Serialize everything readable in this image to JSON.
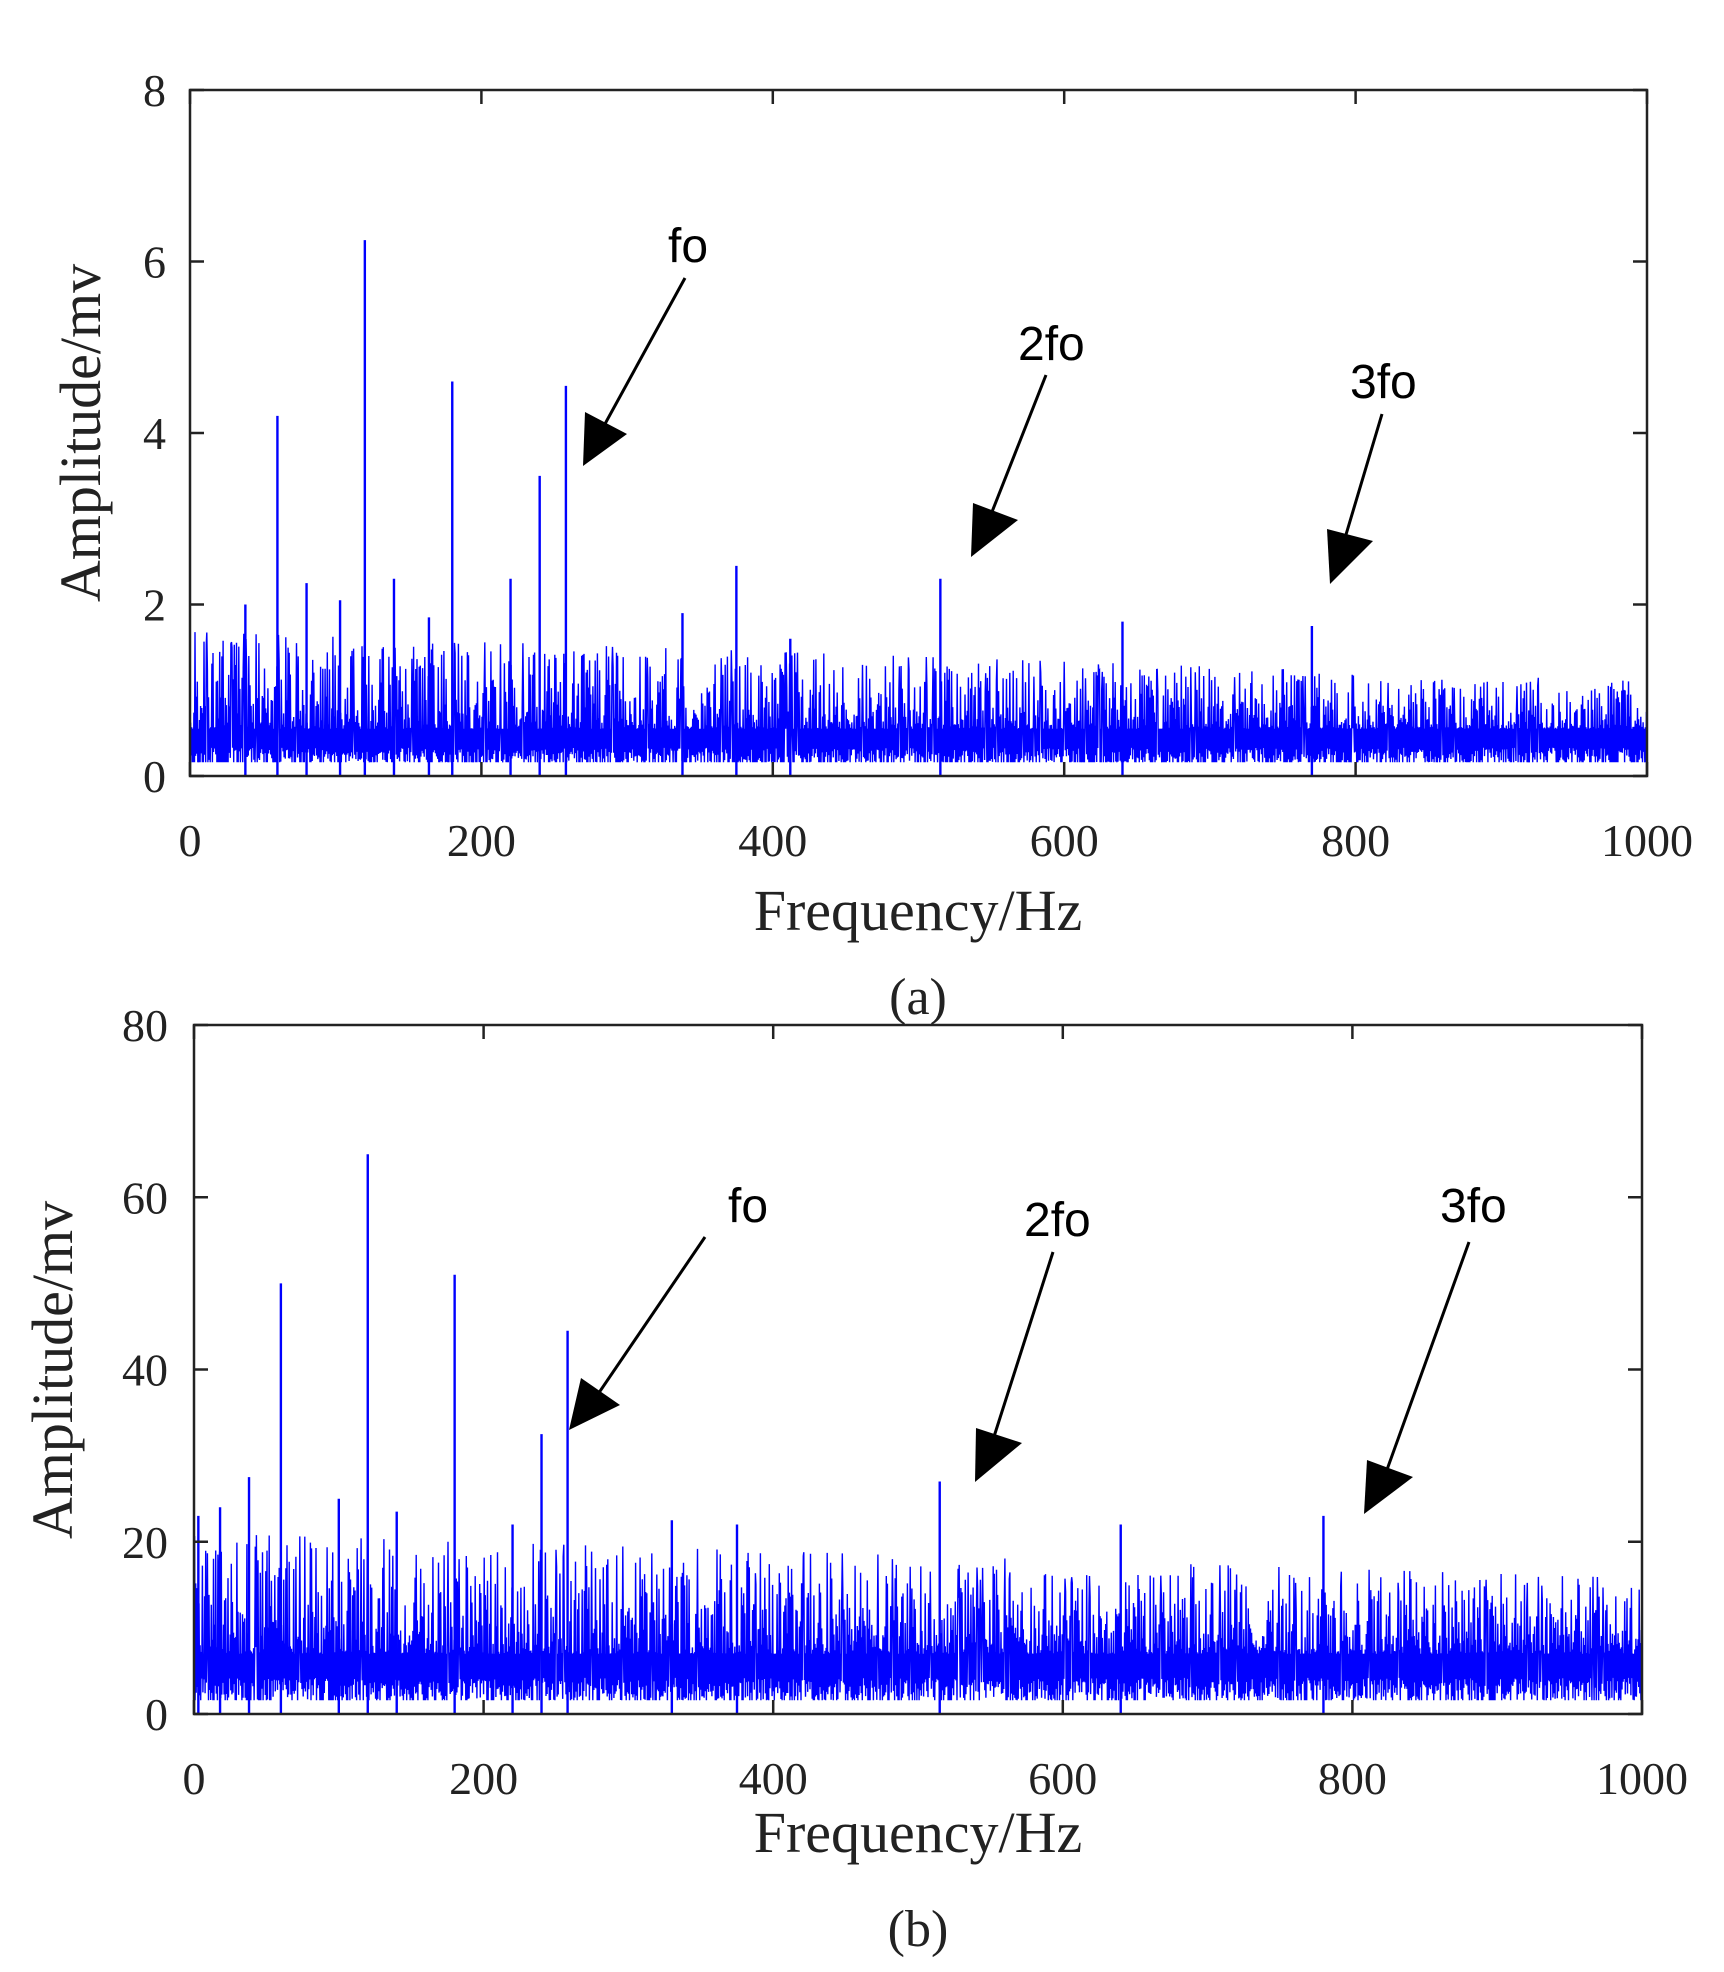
{
  "chart_data": [
    {
      "type": "line",
      "panel_label": "(a)",
      "xlabel": "Frequency/Hz",
      "ylabel": "Amplitude/mv",
      "xlim": [
        0,
        1000
      ],
      "ylim": [
        0,
        8
      ],
      "x_ticks": [
        0,
        200,
        400,
        600,
        800,
        1000
      ],
      "x_tick_labels": [
        "0",
        "200",
        "400",
        "600",
        "800",
        "1000"
      ],
      "y_ticks": [
        0,
        2,
        4,
        6,
        8
      ],
      "y_tick_labels": [
        "0",
        "2",
        "4",
        "6",
        "8"
      ],
      "series": [
        {
          "name": "spectrum",
          "color": "#0000ff",
          "noise_base": 0.55,
          "noise_envelope_start": 1.6,
          "noise_envelope_end": 1.05,
          "peaks": [
            {
              "x": 60,
              "y": 4.2
            },
            {
              "x": 120,
              "y": 6.25
            },
            {
              "x": 180,
              "y": 4.6
            },
            {
              "x": 240,
              "y": 3.5
            },
            {
              "x": 258,
              "y": 4.55
            },
            {
              "x": 80,
              "y": 2.25
            },
            {
              "x": 140,
              "y": 2.3
            },
            {
              "x": 220,
              "y": 2.3
            },
            {
              "x": 375,
              "y": 2.45
            },
            {
              "x": 338,
              "y": 1.9
            },
            {
              "x": 515,
              "y": 2.3
            },
            {
              "x": 640,
              "y": 1.8
            },
            {
              "x": 770,
              "y": 1.75
            },
            {
              "x": 38,
              "y": 2.0
            },
            {
              "x": 103,
              "y": 2.05
            },
            {
              "x": 164,
              "y": 1.85
            },
            {
              "x": 412,
              "y": 1.6
            }
          ]
        }
      ],
      "annotations": [
        {
          "text": "fo",
          "x": 272,
          "y": 3.7
        },
        {
          "text": "2fo",
          "x": 538,
          "y": 2.55
        },
        {
          "text": "3fo",
          "x": 780,
          "y": 2.25
        }
      ]
    },
    {
      "type": "line",
      "panel_label": "(b)",
      "xlabel": "Frequency/Hz",
      "ylabel": "Amplitude/mv",
      "xlim": [
        0,
        1000
      ],
      "ylim": [
        0,
        80
      ],
      "x_ticks": [
        0,
        200,
        400,
        600,
        800,
        1000
      ],
      "x_tick_labels": [
        "0",
        "200",
        "400",
        "600",
        "800",
        "1000"
      ],
      "y_ticks": [
        0,
        20,
        40,
        60,
        80
      ],
      "y_tick_labels": [
        "0",
        "20",
        "40",
        "60",
        "80"
      ],
      "series": [
        {
          "name": "spectrum",
          "color": "#0000ff",
          "noise_base": 7,
          "noise_envelope_start": 20,
          "noise_envelope_end": 15,
          "peaks": [
            {
              "x": 60,
              "y": 50
            },
            {
              "x": 120,
              "y": 65
            },
            {
              "x": 180,
              "y": 51
            },
            {
              "x": 240,
              "y": 32.5
            },
            {
              "x": 258,
              "y": 44.5
            },
            {
              "x": 38,
              "y": 27.5
            },
            {
              "x": 100,
              "y": 25
            },
            {
              "x": 140,
              "y": 23.5
            },
            {
              "x": 220,
              "y": 22
            },
            {
              "x": 375,
              "y": 22
            },
            {
              "x": 330,
              "y": 22.5
            },
            {
              "x": 515,
              "y": 27
            },
            {
              "x": 640,
              "y": 22
            },
            {
              "x": 780,
              "y": 23
            },
            {
              "x": 18,
              "y": 24
            },
            {
              "x": 3,
              "y": 23
            }
          ]
        }
      ],
      "annotations": [
        {
          "text": "fo",
          "x": 258,
          "y": 33
        },
        {
          "text": "2fo",
          "x": 538,
          "y": 27
        },
        {
          "text": "3fo",
          "x": 808,
          "y": 23
        }
      ]
    }
  ]
}
